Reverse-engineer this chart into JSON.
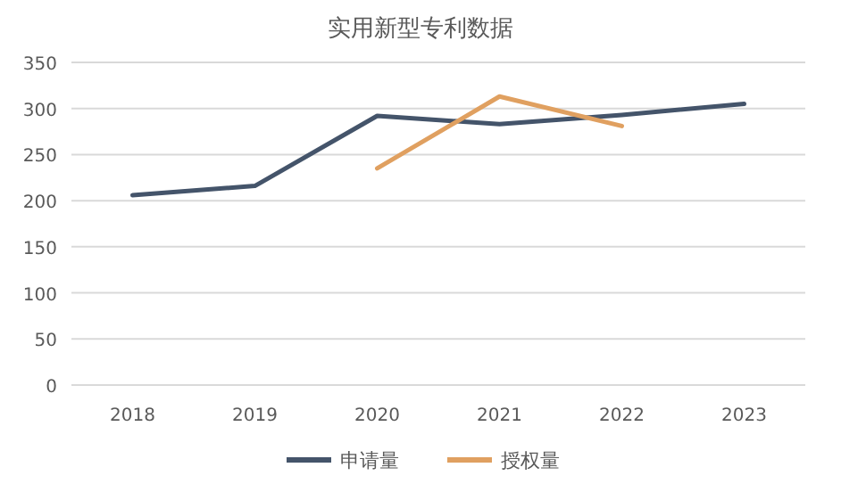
{
  "chart_data": {
    "type": "line",
    "title": "实用新型专利数据",
    "categories": [
      "2018",
      "2019",
      "2020",
      "2021",
      "2022",
      "2023"
    ],
    "series": [
      {
        "name": "申请量",
        "color": "#44546a",
        "values": [
          206,
          216,
          292,
          283,
          293,
          305
        ]
      },
      {
        "name": "授权量",
        "color": "#e0a060",
        "values": [
          null,
          null,
          235,
          313,
          281,
          null
        ]
      }
    ],
    "ylim": [
      0,
      350
    ],
    "yticks": [
      0,
      50,
      100,
      150,
      200,
      250,
      300,
      350
    ],
    "grid": "y",
    "legend": "bottom",
    "marker": "none",
    "line_style": "solid"
  }
}
